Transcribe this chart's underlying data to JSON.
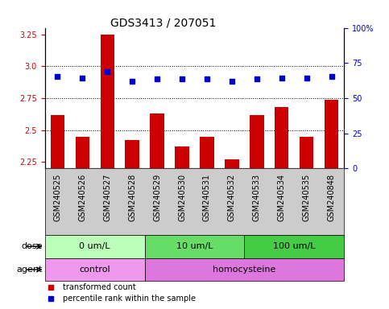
{
  "title": "GDS3413 / 207051",
  "samples": [
    "GSM240525",
    "GSM240526",
    "GSM240527",
    "GSM240528",
    "GSM240529",
    "GSM240530",
    "GSM240531",
    "GSM240532",
    "GSM240533",
    "GSM240534",
    "GSM240535",
    "GSM240848"
  ],
  "bar_values": [
    2.62,
    2.45,
    3.25,
    2.42,
    2.63,
    2.37,
    2.45,
    2.27,
    2.62,
    2.68,
    2.45,
    2.74
  ],
  "dot_values": [
    2.92,
    2.91,
    2.96,
    2.88,
    2.9,
    2.9,
    2.9,
    2.88,
    2.9,
    2.91,
    2.91,
    2.92
  ],
  "bar_color": "#cc0000",
  "dot_color": "#0000cc",
  "ylim_left": [
    2.2,
    3.3
  ],
  "yticks_left": [
    2.25,
    2.5,
    2.75,
    3.0,
    3.25
  ],
  "yticks_right": [
    0,
    25,
    50,
    75,
    100
  ],
  "ytick_labels_right": [
    "0",
    "25",
    "50",
    "75",
    "100%"
  ],
  "grid_values": [
    2.5,
    2.75,
    3.0
  ],
  "dose_groups": [
    {
      "label": "0 um/L",
      "start": 0,
      "end": 4,
      "color": "#bbffbb"
    },
    {
      "label": "10 um/L",
      "start": 4,
      "end": 8,
      "color": "#66dd66"
    },
    {
      "label": "100 um/L",
      "start": 8,
      "end": 12,
      "color": "#44cc44"
    }
  ],
  "agent_groups": [
    {
      "label": "control",
      "start": 0,
      "end": 4,
      "color": "#ee99ee"
    },
    {
      "label": "homocysteine",
      "start": 4,
      "end": 12,
      "color": "#dd77dd"
    }
  ],
  "dose_label": "dose",
  "agent_label": "agent",
  "legend_bar": "transformed count",
  "legend_dot": "percentile rank within the sample",
  "bar_bottom": 2.2,
  "title_fontsize": 10,
  "tick_fontsize": 7,
  "annotation_fontsize": 8,
  "legend_fontsize": 7,
  "xticklabel_bg": "#cccccc"
}
